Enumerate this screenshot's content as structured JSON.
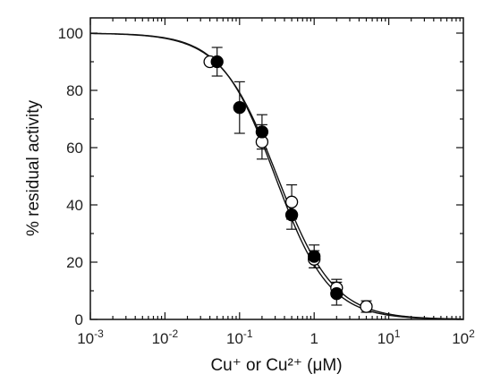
{
  "chart_data": {
    "type": "scatter",
    "title": "",
    "xlabel": "Cu⁺ or Cu²⁺ (μM)",
    "ylabel": "% residual activity",
    "x_scale": "log",
    "xlim": [
      0.001,
      100
    ],
    "ylim": [
      0,
      105
    ],
    "x_ticks": [
      {
        "value": 0.001,
        "base": "10",
        "exp": "-3"
      },
      {
        "value": 0.01,
        "base": "10",
        "exp": "-2"
      },
      {
        "value": 0.1,
        "base": "10",
        "exp": "-1"
      },
      {
        "value": 1,
        "base": "1",
        "exp": ""
      },
      {
        "value": 10,
        "base": "10",
        "exp": "1"
      },
      {
        "value": 100,
        "base": "10",
        "exp": "2"
      }
    ],
    "y_ticks": [
      0,
      20,
      40,
      60,
      80,
      100
    ],
    "grid": false,
    "series": [
      {
        "marker": "open-circle",
        "points": [
          {
            "x": 0.04,
            "y": 90
          },
          {
            "x": 0.2,
            "y": 62,
            "err": 6
          },
          {
            "x": 0.5,
            "y": 41,
            "err": 6
          },
          {
            "x": 1,
            "y": 21,
            "err": 3
          },
          {
            "x": 2,
            "y": 11,
            "err": 3
          },
          {
            "x": 5,
            "y": 4.5,
            "err": 2
          }
        ],
        "fit": {
          "top": 100,
          "bottom": 0,
          "ic50": 0.32,
          "hill": 1.15
        }
      },
      {
        "marker": "filled-circle",
        "points": [
          {
            "x": 0.05,
            "y": 90,
            "err": 5
          },
          {
            "x": 0.1,
            "y": 74,
            "err": 9
          },
          {
            "x": 0.2,
            "y": 65.5,
            "err": 6
          },
          {
            "x": 0.5,
            "y": 36.5,
            "err": 5
          },
          {
            "x": 1,
            "y": 22,
            "err": 4
          },
          {
            "x": 2,
            "y": 9,
            "err": 4
          }
        ],
        "fit": {
          "top": 100,
          "bottom": 0,
          "ic50": 0.3,
          "hill": 1.2
        }
      }
    ]
  }
}
